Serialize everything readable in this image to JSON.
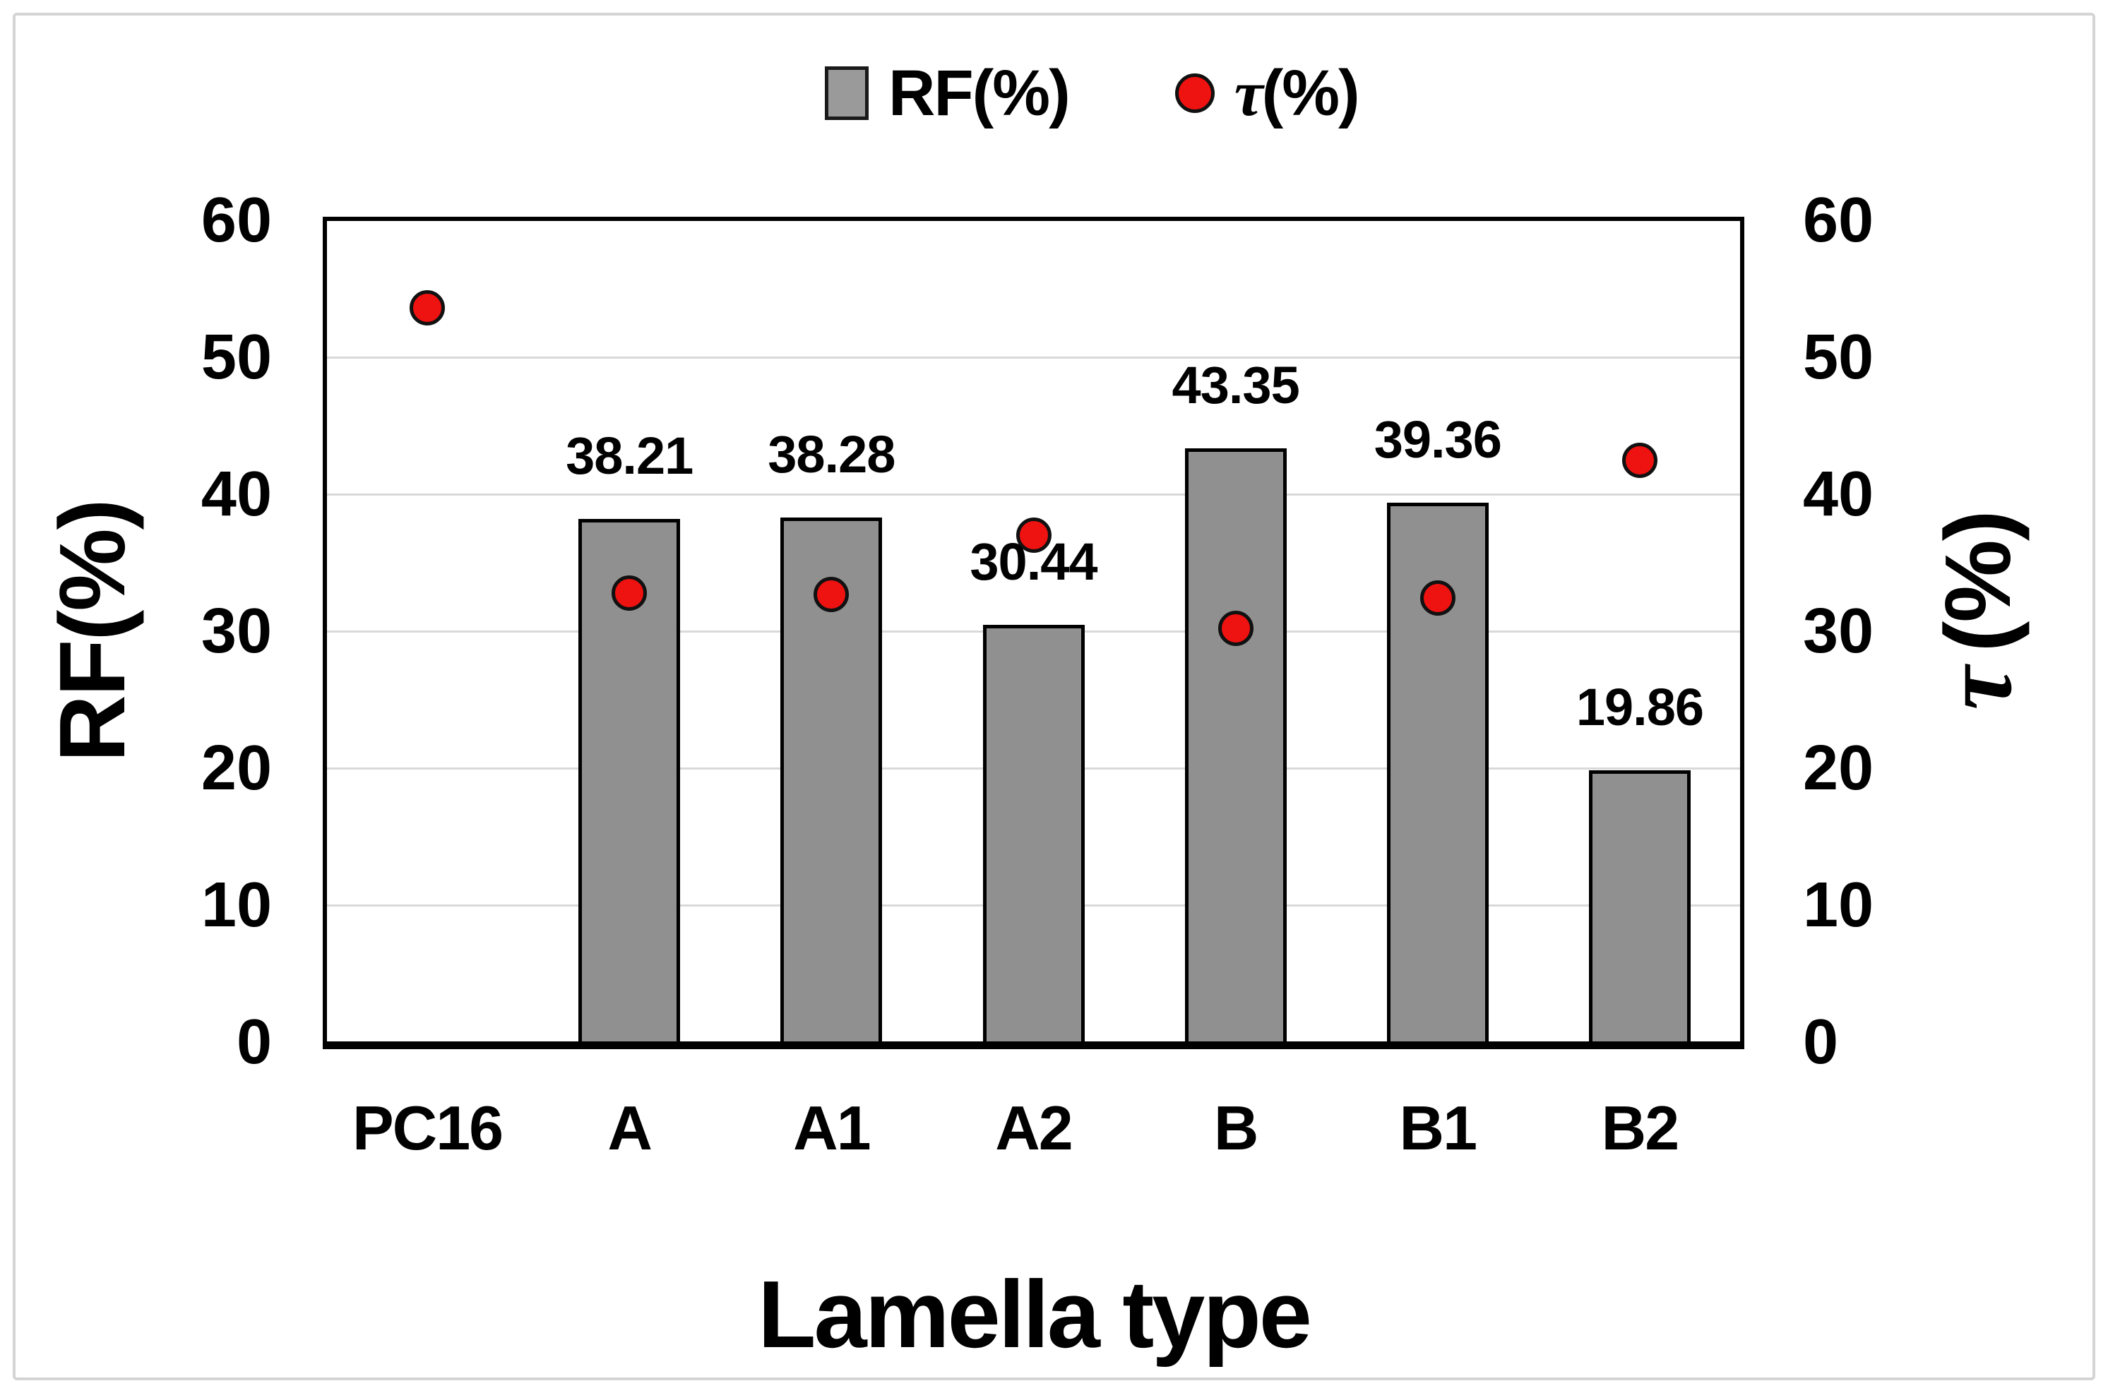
{
  "figure": {
    "background": "#ffffff",
    "frame_border_color": "#d4d4d4"
  },
  "legend": {
    "position": "top-center",
    "items": [
      {
        "label": "RF(%)",
        "marker": "square",
        "marker_color": "#9a9a9a"
      },
      {
        "symbol": "τ",
        "rest": "(%)",
        "marker": "circle",
        "marker_color": "#ee1210"
      }
    ]
  },
  "chart_data": {
    "type": "combo-bar-scatter",
    "categories": [
      "PC16",
      "A",
      "A1",
      "A2",
      "B",
      "B1",
      "B2"
    ],
    "series": [
      {
        "name": "RF(%)",
        "type": "bar",
        "axis": "left",
        "color": "#909090",
        "values": [
          null,
          38.21,
          38.28,
          30.44,
          43.35,
          39.36,
          19.86
        ],
        "data_labels": [
          "",
          "38.21",
          "38.28",
          "30.44",
          "43.35",
          "39.36",
          "19.86"
        ]
      },
      {
        "name": "τ(%)",
        "type": "scatter",
        "axis": "right",
        "color": "#ee1210",
        "values": [
          53.6,
          32.8,
          32.7,
          37.0,
          30.2,
          32.4,
          42.5
        ]
      }
    ],
    "left_axis": {
      "title": "RF(%)",
      "min": 0,
      "max": 60,
      "step": 10,
      "ticks": [
        "0",
        "10",
        "20",
        "30",
        "40",
        "50",
        "60"
      ]
    },
    "right_axis": {
      "title_symbol": "τ",
      "title_rest": "(%)",
      "min": 0,
      "max": 60,
      "step": 10,
      "ticks": [
        "0",
        "10",
        "20",
        "30",
        "40",
        "50",
        "60"
      ]
    },
    "x_axis": {
      "title": "Lamella type"
    },
    "grid": true,
    "gridline_color": "#d9d9d9",
    "legend_position": "top"
  }
}
